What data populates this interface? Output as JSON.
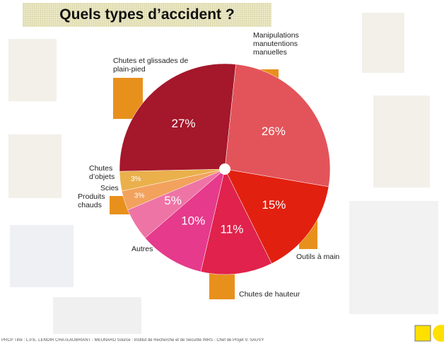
{
  "chart_data": {
    "type": "pie",
    "title": "Quels types d’accident ?",
    "categories": [
      "Manipulations manutentions manuelles",
      "Outils à main",
      "Chutes de hauteur",
      "Autres",
      "Produits chauds",
      "Scies",
      "Chutes d’objets",
      "Chutes et glissades de plain-pied"
    ],
    "values": [
      26,
      15,
      11,
      10,
      5,
      3,
      3,
      27
    ],
    "value_labels": [
      "26%",
      "15%",
      "11%",
      "10%",
      "5%",
      "3%",
      "3%",
      "27%"
    ],
    "colors": [
      "#e2545a",
      "#e2200f",
      "#e0224c",
      "#e63a8c",
      "#ee74a6",
      "#f2a25c",
      "#eab04c",
      "#a5172b"
    ]
  },
  "footer": "PRCP Titre : L.P.E. LENOIR CHATEAUBRIANT - MEUNARD Source : Institut de Recherche et de Sécurité INRS - Chef de Projet V. SAUVY"
}
